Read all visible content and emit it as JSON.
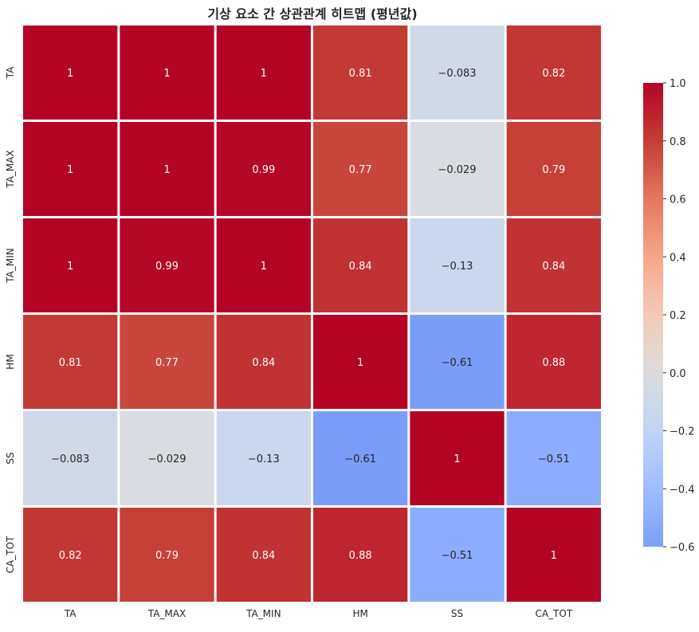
{
  "chart_data": {
    "type": "heatmap",
    "title": "기상 요소 간 상관관계 히트맵 (평년값)",
    "rows": [
      "TA",
      "TA_MAX",
      "TA_MIN",
      "HM",
      "SS",
      "CA_TOT"
    ],
    "columns": [
      "TA",
      "TA_MAX",
      "TA_MIN",
      "HM",
      "SS",
      "CA_TOT"
    ],
    "values": [
      [
        1,
        1,
        1,
        0.81,
        -0.083,
        0.82
      ],
      [
        1,
        1,
        0.99,
        0.77,
        -0.029,
        0.79
      ],
      [
        1,
        0.99,
        1,
        0.84,
        -0.13,
        0.84
      ],
      [
        0.81,
        0.77,
        0.84,
        1,
        -0.61,
        0.88
      ],
      [
        -0.083,
        -0.029,
        -0.13,
        -0.61,
        1,
        -0.51
      ],
      [
        0.82,
        0.79,
        0.84,
        0.88,
        -0.51,
        1
      ]
    ],
    "labels": [
      [
        "1",
        "1",
        "1",
        "0.81",
        "−0.083",
        "0.82"
      ],
      [
        "1",
        "1",
        "0.99",
        "0.77",
        "−0.029",
        "0.79"
      ],
      [
        "1",
        "0.99",
        "1",
        "0.84",
        "−0.13",
        "0.84"
      ],
      [
        "0.81",
        "0.77",
        "0.84",
        "1",
        "−0.61",
        "0.88"
      ],
      [
        "−0.083",
        "−0.029",
        "−0.13",
        "−0.61",
        "1",
        "−0.51"
      ],
      [
        "0.82",
        "0.79",
        "0.84",
        "0.88",
        "−0.51",
        "1"
      ]
    ],
    "colorbar": {
      "min": -0.6,
      "max": 1.0,
      "ticks": [
        "1.0",
        "0.8",
        "0.6",
        "0.4",
        "0.2",
        "0.0",
        "−0.2",
        "−0.4",
        "−0.6"
      ],
      "tick_values": [
        1.0,
        0.8,
        0.6,
        0.4,
        0.2,
        0.0,
        -0.2,
        -0.4,
        -0.6
      ]
    },
    "colormap": "coolwarm"
  }
}
